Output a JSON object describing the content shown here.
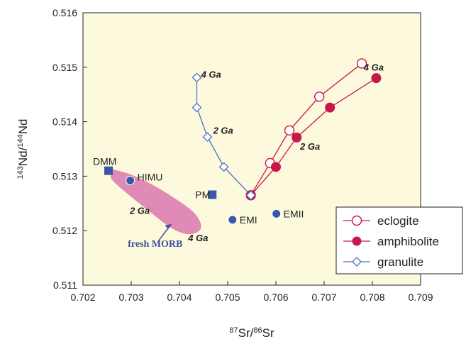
{
  "chart_data": {
    "type": "scatter",
    "xlabel": "87Sr/86Sr",
    "ylabel": "143Nd/144Nd",
    "xlim": [
      0.702,
      0.709
    ],
    "ylim": [
      0.511,
      0.516
    ],
    "x_ticks": [
      "0.702",
      "0.703",
      "0.704",
      "0.705",
      "0.706",
      "0.707",
      "0.708",
      "0.709"
    ],
    "y_ticks": [
      "0.511",
      "0.512",
      "0.513",
      "0.514",
      "0.515",
      "0.516"
    ],
    "background_color": "#fcf9dc",
    "series": [
      {
        "name": "eclogite",
        "marker": "open-circle",
        "color": "#c8174a",
        "points": [
          [
            0.70548,
            0.51265
          ],
          [
            0.70588,
            0.51324
          ],
          [
            0.70628,
            0.51384
          ],
          [
            0.7069,
            0.51446
          ],
          [
            0.70778,
            0.51507
          ]
        ]
      },
      {
        "name": "amphibolite",
        "marker": "filled-circle",
        "color": "#c8174a",
        "points": [
          [
            0.70548,
            0.51265
          ],
          [
            0.706,
            0.51317
          ],
          [
            0.70643,
            0.51371
          ],
          [
            0.70712,
            0.51426
          ],
          [
            0.70808,
            0.5148
          ]
        ]
      },
      {
        "name": "granulite",
        "marker": "open-diamond",
        "color": "#4a74c4",
        "points": [
          [
            0.70548,
            0.51265
          ],
          [
            0.70492,
            0.51317
          ],
          [
            0.70458,
            0.51372
          ],
          [
            0.70436,
            0.51426
          ],
          [
            0.70436,
            0.51481
          ]
        ]
      }
    ],
    "reference_points": [
      {
        "label": "DMM",
        "marker": "square",
        "x": 0.70253,
        "y": 0.5131
      },
      {
        "label": "HIMU",
        "marker": "circle",
        "x": 0.70298,
        "y": 0.51292
      },
      {
        "label": "PM",
        "marker": "square",
        "x": 0.70468,
        "y": 0.51266
      },
      {
        "label": "EMI",
        "marker": "circle",
        "x": 0.7051,
        "y": 0.5122
      },
      {
        "label": "EMII",
        "marker": "circle",
        "x": 0.70601,
        "y": 0.51231
      }
    ],
    "reference_color": "#3a57a8",
    "morb_field": {
      "label": "fresh MORB",
      "color": "#e08ab6",
      "outline": [
        [
          0.7026,
          0.51313
        ],
        [
          0.703,
          0.51304
        ],
        [
          0.7035,
          0.51282
        ],
        [
          0.70395,
          0.51257
        ],
        [
          0.7043,
          0.51235
        ],
        [
          0.70445,
          0.51215
        ],
        [
          0.70445,
          0.512
        ],
        [
          0.7042,
          0.51191
        ],
        [
          0.70385,
          0.51202
        ],
        [
          0.70345,
          0.5123
        ],
        [
          0.703,
          0.51262
        ],
        [
          0.70262,
          0.5129
        ],
        [
          0.70252,
          0.51305
        ]
      ]
    },
    "annotations": [
      {
        "text": "4 Ga",
        "x": 0.70782,
        "y": 0.51494
      },
      {
        "text": "2 Ga",
        "x": 0.7065,
        "y": 0.51349
      },
      {
        "text": "4 Ga",
        "x": 0.70445,
        "y": 0.51481
      },
      {
        "text": "2 Ga",
        "x": 0.7047,
        "y": 0.51378
      },
      {
        "text": "2 Ga",
        "x": 0.70297,
        "y": 0.51231
      },
      {
        "text": "4 Ga",
        "x": 0.70418,
        "y": 0.51181
      }
    ],
    "legend": {
      "position": "bottom-right",
      "entries": [
        "eclogite",
        "amphibolite",
        "granulite"
      ]
    },
    "grid": false
  }
}
